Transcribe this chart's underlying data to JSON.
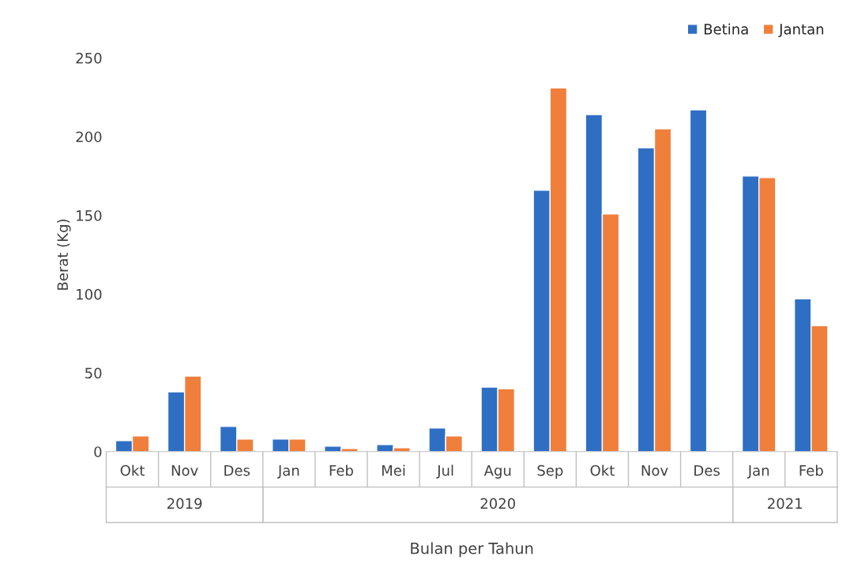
{
  "chart_data": {
    "type": "bar",
    "xlabel": "Bulan per Tahun",
    "ylabel": "Berat (Kg)",
    "categories": [
      "Okt",
      "Nov",
      "Des",
      "Jan",
      "Feb",
      "Mei",
      "Jul",
      "Agu",
      "Sep",
      "Okt",
      "Nov",
      "Des",
      "Jan",
      "Feb"
    ],
    "series": [
      {
        "name": "Betina",
        "color": "#2e6fc4",
        "values": [
          7,
          38,
          16,
          8,
          3.5,
          4.5,
          15,
          41,
          166,
          214,
          193,
          217,
          175,
          97
        ]
      },
      {
        "name": "Jantan",
        "color": "#f07f3c",
        "values": [
          10,
          48,
          8,
          8,
          2,
          2.5,
          10,
          40,
          231,
          151,
          205,
          null,
          174,
          80
        ]
      }
    ],
    "annotations": [
      "2019",
      "2020",
      "2021"
    ],
    "ylim": [
      0,
      250
    ],
    "yticks": [
      0,
      50,
      100,
      150,
      200,
      250
    ],
    "grid": false,
    "legend": "top right"
  }
}
